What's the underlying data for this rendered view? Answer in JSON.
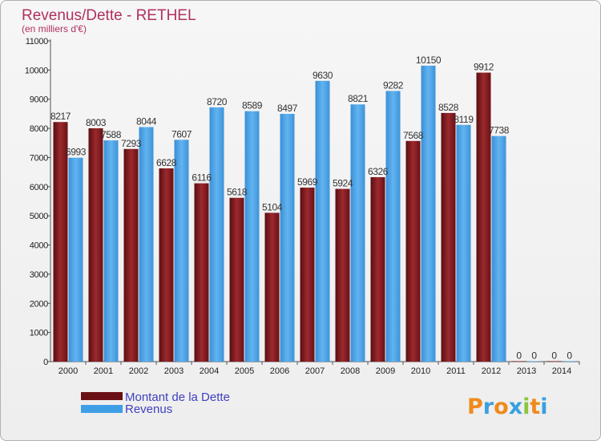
{
  "chart_data": {
    "type": "bar",
    "title": "Revenus/Dette - RETHEL",
    "subtitle": "(en milliers d'€)",
    "categories": [
      "2000",
      "2001",
      "2002",
      "2003",
      "2004",
      "2005",
      "2006",
      "2007",
      "2008",
      "2009",
      "2010",
      "2011",
      "2012",
      "2013",
      "2014"
    ],
    "series": [
      {
        "name": "Montant de la Dette",
        "color": "#8b1a1e",
        "values": [
          8217,
          8003,
          7293,
          6628,
          6116,
          5618,
          5104,
          5969,
          5924,
          6326,
          7568,
          8528,
          9912,
          0,
          0
        ]
      },
      {
        "name": "Revenus",
        "color": "#3f9fe6",
        "values": [
          6993,
          7588,
          8044,
          7607,
          8720,
          8589,
          8497,
          9630,
          8821,
          9282,
          10150,
          8119,
          7738,
          0,
          0
        ]
      }
    ],
    "ylim": [
      0,
      11000
    ],
    "yticks": [
      0,
      1000,
      2000,
      3000,
      4000,
      5000,
      6000,
      7000,
      8000,
      9000,
      10000,
      11000
    ],
    "grid": false,
    "legend_position": "bottom-left"
  },
  "branding": {
    "logo_text": "Proxiti"
  }
}
